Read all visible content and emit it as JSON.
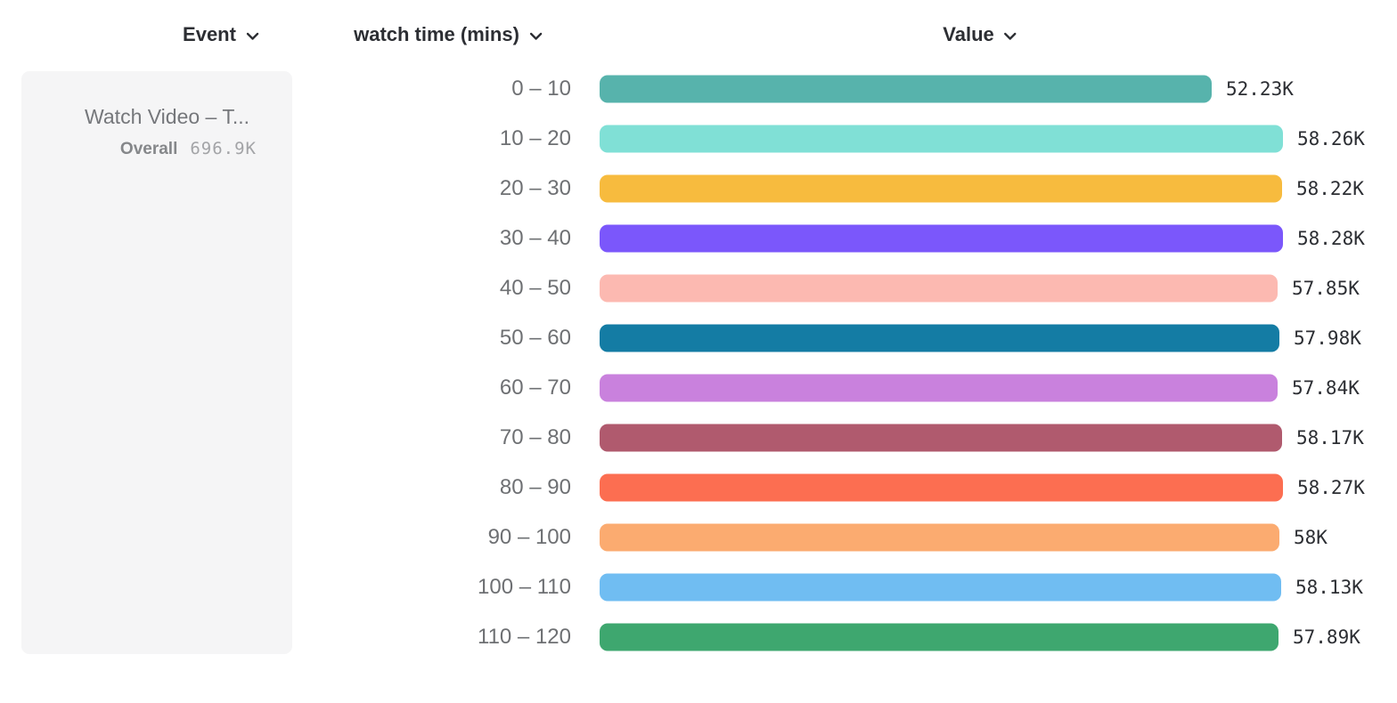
{
  "header": {
    "columns": [
      {
        "id": "event",
        "label": "Event",
        "icon": "chevron-down-icon"
      },
      {
        "id": "breakdown",
        "label": "watch time (mins)",
        "icon": "chevron-down-icon"
      },
      {
        "id": "value",
        "label": "Value",
        "icon": "chevron-down-icon"
      }
    ]
  },
  "event_panel": {
    "event_name": "Watch Video – T...",
    "overall_label": "Overall",
    "overall_value": "696.9K"
  },
  "chart_data": {
    "type": "bar",
    "orientation": "horizontal",
    "title": "",
    "xlabel": "",
    "ylabel": "watch time (mins)",
    "grid": false,
    "legend": "none",
    "categories": [
      "0 – 10",
      "10 – 20",
      "20 – 30",
      "30 – 40",
      "40 – 50",
      "50 – 60",
      "60 – 70",
      "70 – 80",
      "80 – 90",
      "90 – 100",
      "100 – 110",
      "110 – 120"
    ],
    "values": [
      52.23,
      58.26,
      58.22,
      58.28,
      57.85,
      57.98,
      57.84,
      58.17,
      58.27,
      58.0,
      58.13,
      57.89
    ],
    "unit": "K",
    "value_labels": [
      "52.23K",
      "58.26K",
      "58.22K",
      "58.28K",
      "57.85K",
      "57.98K",
      "57.84K",
      "58.17K",
      "58.27K",
      "58K",
      "58.13K",
      "57.89K"
    ],
    "bar_colors": [
      "#57b3ac",
      "#80e0d6",
      "#f7bb3e",
      "#7b57fb",
      "#fcb9b1",
      "#147ca4",
      "#c981dd",
      "#b05a6e",
      "#fc6e51",
      "#fbab70",
      "#70bdf2",
      "#3ea76f"
    ],
    "xlim": [
      0,
      58.28
    ]
  },
  "colors": {
    "header_text": "#2c2e33",
    "category_text": "#6e7073",
    "value_text": "#2c2e33",
    "panel_bg": "#f5f5f6",
    "event_name_text": "#75777b",
    "overall_label_text": "#85878a",
    "overall_value_text": "#a3a4a7"
  }
}
